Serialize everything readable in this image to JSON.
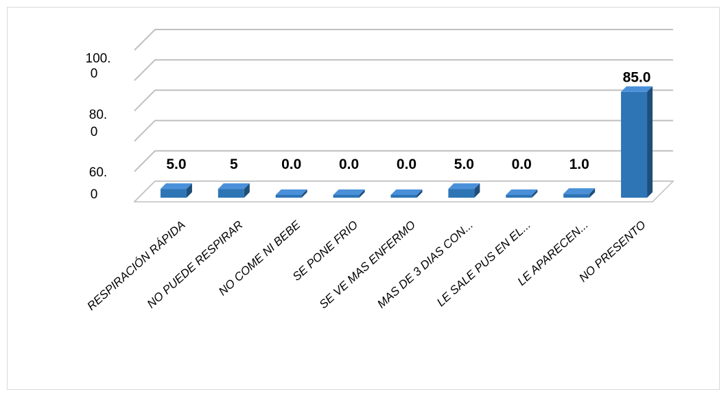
{
  "chart_data": {
    "type": "bar",
    "style": "3d-column",
    "categories": [
      "RESPIRACIÓN RÁPIDA",
      "NO PUEDE RESPIRAR",
      "NO COME NI BEBE",
      "SE PONE FRIO",
      "SE VE MAS ENFERMO",
      "MAS DE 3 DIAS CON...",
      "LE SALE PUS EN EL...",
      "LE APARECEN...",
      "NO PRESENTO"
    ],
    "values": [
      5.0,
      5,
      0.0,
      0.0,
      0.0,
      5.0,
      0.0,
      1.0,
      85.0
    ],
    "data_labels": [
      "5.0",
      "5",
      "0.0",
      "0.0",
      "0.0",
      "5.0",
      "0.0",
      "1.0",
      "85.0"
    ],
    "y_tick_labels": [
      {
        "line1": "100.",
        "line2": "0"
      },
      {
        "line1": "80.",
        "line2": "0"
      },
      {
        "line1": "60.",
        "line2": "0"
      }
    ],
    "ylim": [
      0,
      100
    ],
    "grid": true,
    "bar_color": "#2e75b6",
    "bar_top_color": "#4a90d9",
    "bar_side_color": "#1f4e79",
    "grid_color": "#bfbfbf",
    "title": "",
    "xlabel": "",
    "ylabel": ""
  }
}
